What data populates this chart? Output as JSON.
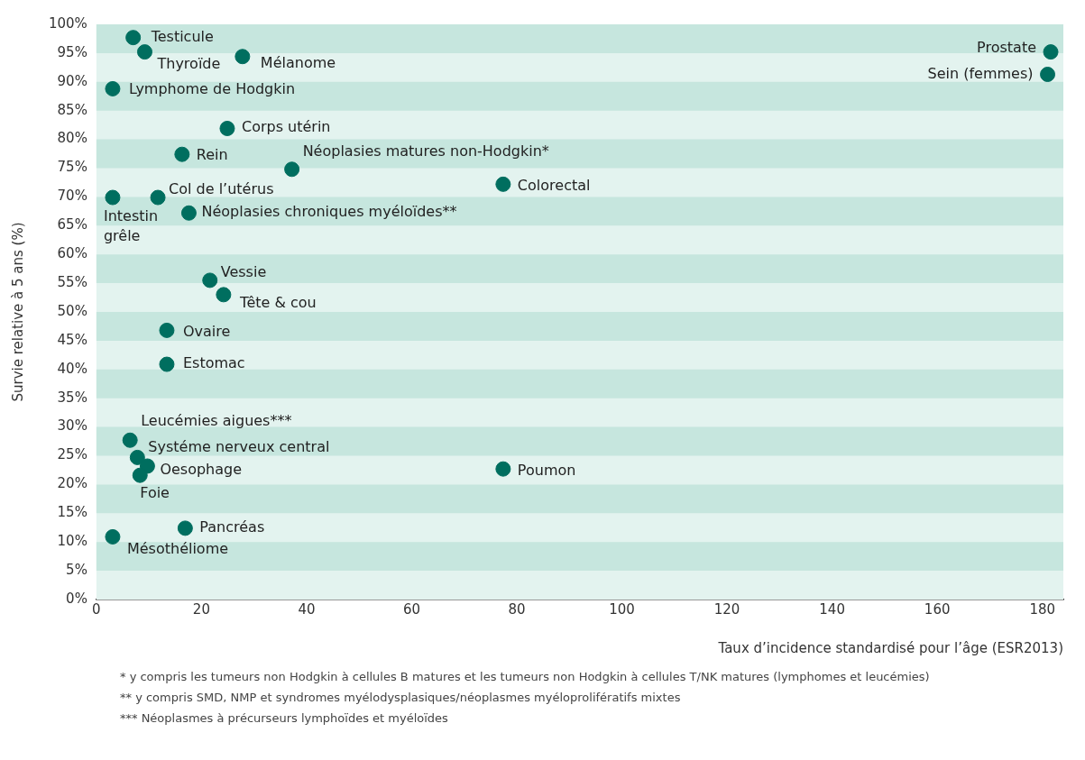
{
  "chart_data": {
    "type": "scatter",
    "xlabel": "Taux d’incidence standardisé pour l’âge (ESR2013)",
    "ylabel": "Survie relative à 5 ans (%)",
    "x": [
      7.0,
      9.2,
      27.8,
      181.6,
      181.0,
      3.1,
      24.9,
      16.3,
      37.2,
      77.4,
      3.1,
      11.7,
      17.6,
      21.6,
      24.2,
      13.4,
      13.4,
      6.4,
      7.8,
      9.7,
      8.3,
      77.4,
      16.9,
      3.1
    ],
    "values": [
      97.7,
      95.2,
      94.4,
      95.2,
      91.3,
      88.8,
      81.9,
      77.4,
      74.8,
      72.2,
      69.9,
      69.9,
      67.2,
      55.5,
      53.0,
      46.8,
      40.9,
      27.7,
      24.7,
      23.2,
      21.6,
      22.7,
      12.4,
      10.9
    ],
    "color": "#006e5f",
    "marker": "circle",
    "grid": false,
    "legend": false,
    "xlim": [
      0,
      184
    ],
    "xticks": [
      0,
      20,
      40,
      60,
      80,
      100,
      120,
      140,
      160,
      180
    ],
    "ylim": [
      0,
      100
    ],
    "yticks": [
      {
        "value": 0,
        "label": "0%"
      },
      {
        "value": 5,
        "label": "5%"
      },
      {
        "value": 10,
        "label": "10%"
      },
      {
        "value": 15,
        "label": "15%"
      },
      {
        "value": 20,
        "label": "20%"
      },
      {
        "value": 25,
        "label": "25%"
      },
      {
        "value": 30,
        "label": "30%"
      },
      {
        "value": 35,
        "label": "35%"
      },
      {
        "value": 40,
        "label": "40%"
      },
      {
        "value": 45,
        "label": "45%"
      },
      {
        "value": 50,
        "label": "50%"
      },
      {
        "value": 55,
        "label": "55%"
      },
      {
        "value": 60,
        "label": "60%"
      },
      {
        "value": 65,
        "label": "65%"
      },
      {
        "value": 70,
        "label": "70%"
      },
      {
        "value": 75,
        "label": "75%"
      },
      {
        "value": 80,
        "label": "80%"
      },
      {
        "value": 85,
        "label": "85%"
      },
      {
        "value": 90,
        "label": "90%"
      },
      {
        "value": 95,
        "label": "95%"
      },
      {
        "value": 100,
        "label": "100%"
      }
    ],
    "bands": [
      {
        "axis": "y",
        "from": 95,
        "to": 100,
        "color": "#c6e6de"
      },
      {
        "axis": "y",
        "from": 85,
        "to": 90,
        "color": "#c6e6de"
      },
      {
        "axis": "y",
        "from": 75,
        "to": 80,
        "color": "#c6e6de"
      },
      {
        "axis": "y",
        "from": 65,
        "to": 70,
        "color": "#c6e6de"
      },
      {
        "axis": "y",
        "from": 55,
        "to": 60,
        "color": "#c6e6de"
      },
      {
        "axis": "y",
        "from": 45,
        "to": 50,
        "color": "#c6e6de"
      },
      {
        "axis": "y",
        "from": 35,
        "to": 40,
        "color": "#c6e6de"
      },
      {
        "axis": "y",
        "from": 25,
        "to": 30,
        "color": "#c6e6de"
      },
      {
        "axis": "y",
        "from": 15,
        "to": 20,
        "color": "#c6e6de"
      },
      {
        "axis": "y",
        "from": 5,
        "to": 10,
        "color": "#c6e6de"
      }
    ],
    "annotations": [
      {
        "text": "Testicule",
        "x": 7.0,
        "y": 97.7
      },
      {
        "text": "Thyroïde",
        "x": 9.2,
        "y": 95.2
      },
      {
        "text": "Mélanome",
        "x": 27.8,
        "y": 94.4
      },
      {
        "text": "Prostate",
        "x": 181.6,
        "y": 95.2
      },
      {
        "text": "Sein (femmes)",
        "x": 181.0,
        "y": 91.3
      },
      {
        "text": "Lymphome de Hodgkin",
        "x": 3.1,
        "y": 88.8
      },
      {
        "text": "Corps utérin",
        "x": 24.9,
        "y": 81.9
      },
      {
        "text": "Rein",
        "x": 16.3,
        "y": 77.4
      },
      {
        "text": "Néoplasies matures non-Hodgkin*",
        "x": 37.2,
        "y": 74.8
      },
      {
        "text": "Colorectal",
        "x": 77.4,
        "y": 72.2
      },
      {
        "text": "Intestin\ngrêle",
        "x": 3.1,
        "y": 69.9
      },
      {
        "text": "Col de l’utérus",
        "x": 11.7,
        "y": 69.9
      },
      {
        "text": "Néoplasies chroniques myéloïdes**",
        "x": 17.6,
        "y": 67.2
      },
      {
        "text": "Vessie",
        "x": 21.6,
        "y": 55.5
      },
      {
        "text": "Tête & cou",
        "x": 24.2,
        "y": 53.0
      },
      {
        "text": "Ovaire",
        "x": 13.4,
        "y": 46.8
      },
      {
        "text": "Estomac",
        "x": 13.4,
        "y": 40.9
      },
      {
        "text": "Leucémies aigues***",
        "x": 6.4,
        "y": 27.7
      },
      {
        "text": "Systéme nerveux central",
        "x": 7.8,
        "y": 24.7
      },
      {
        "text": "Oesophage",
        "x": 9.7,
        "y": 23.2
      },
      {
        "text": "Foie",
        "x": 8.3,
        "y": 21.6
      },
      {
        "text": "Poumon",
        "x": 77.4,
        "y": 22.7
      },
      {
        "text": "Pancréas",
        "x": 16.9,
        "y": 12.4
      },
      {
        "text": "Mésothéliome",
        "x": 3.1,
        "y": 10.9
      },
      "* y compris les tumeurs non Hodgkin à cellules B matures et les tumeurs non Hodgkin à cellules T/NK matures (lymphomes et leucémies)",
      "** y compris SMD, NMP et syndromes myélodysplasiques/néoplasmes myéloprolifératifs mixtes",
      "*** Néoplasmes à précurseurs lymphoïdes et myéloïdes"
    ]
  }
}
